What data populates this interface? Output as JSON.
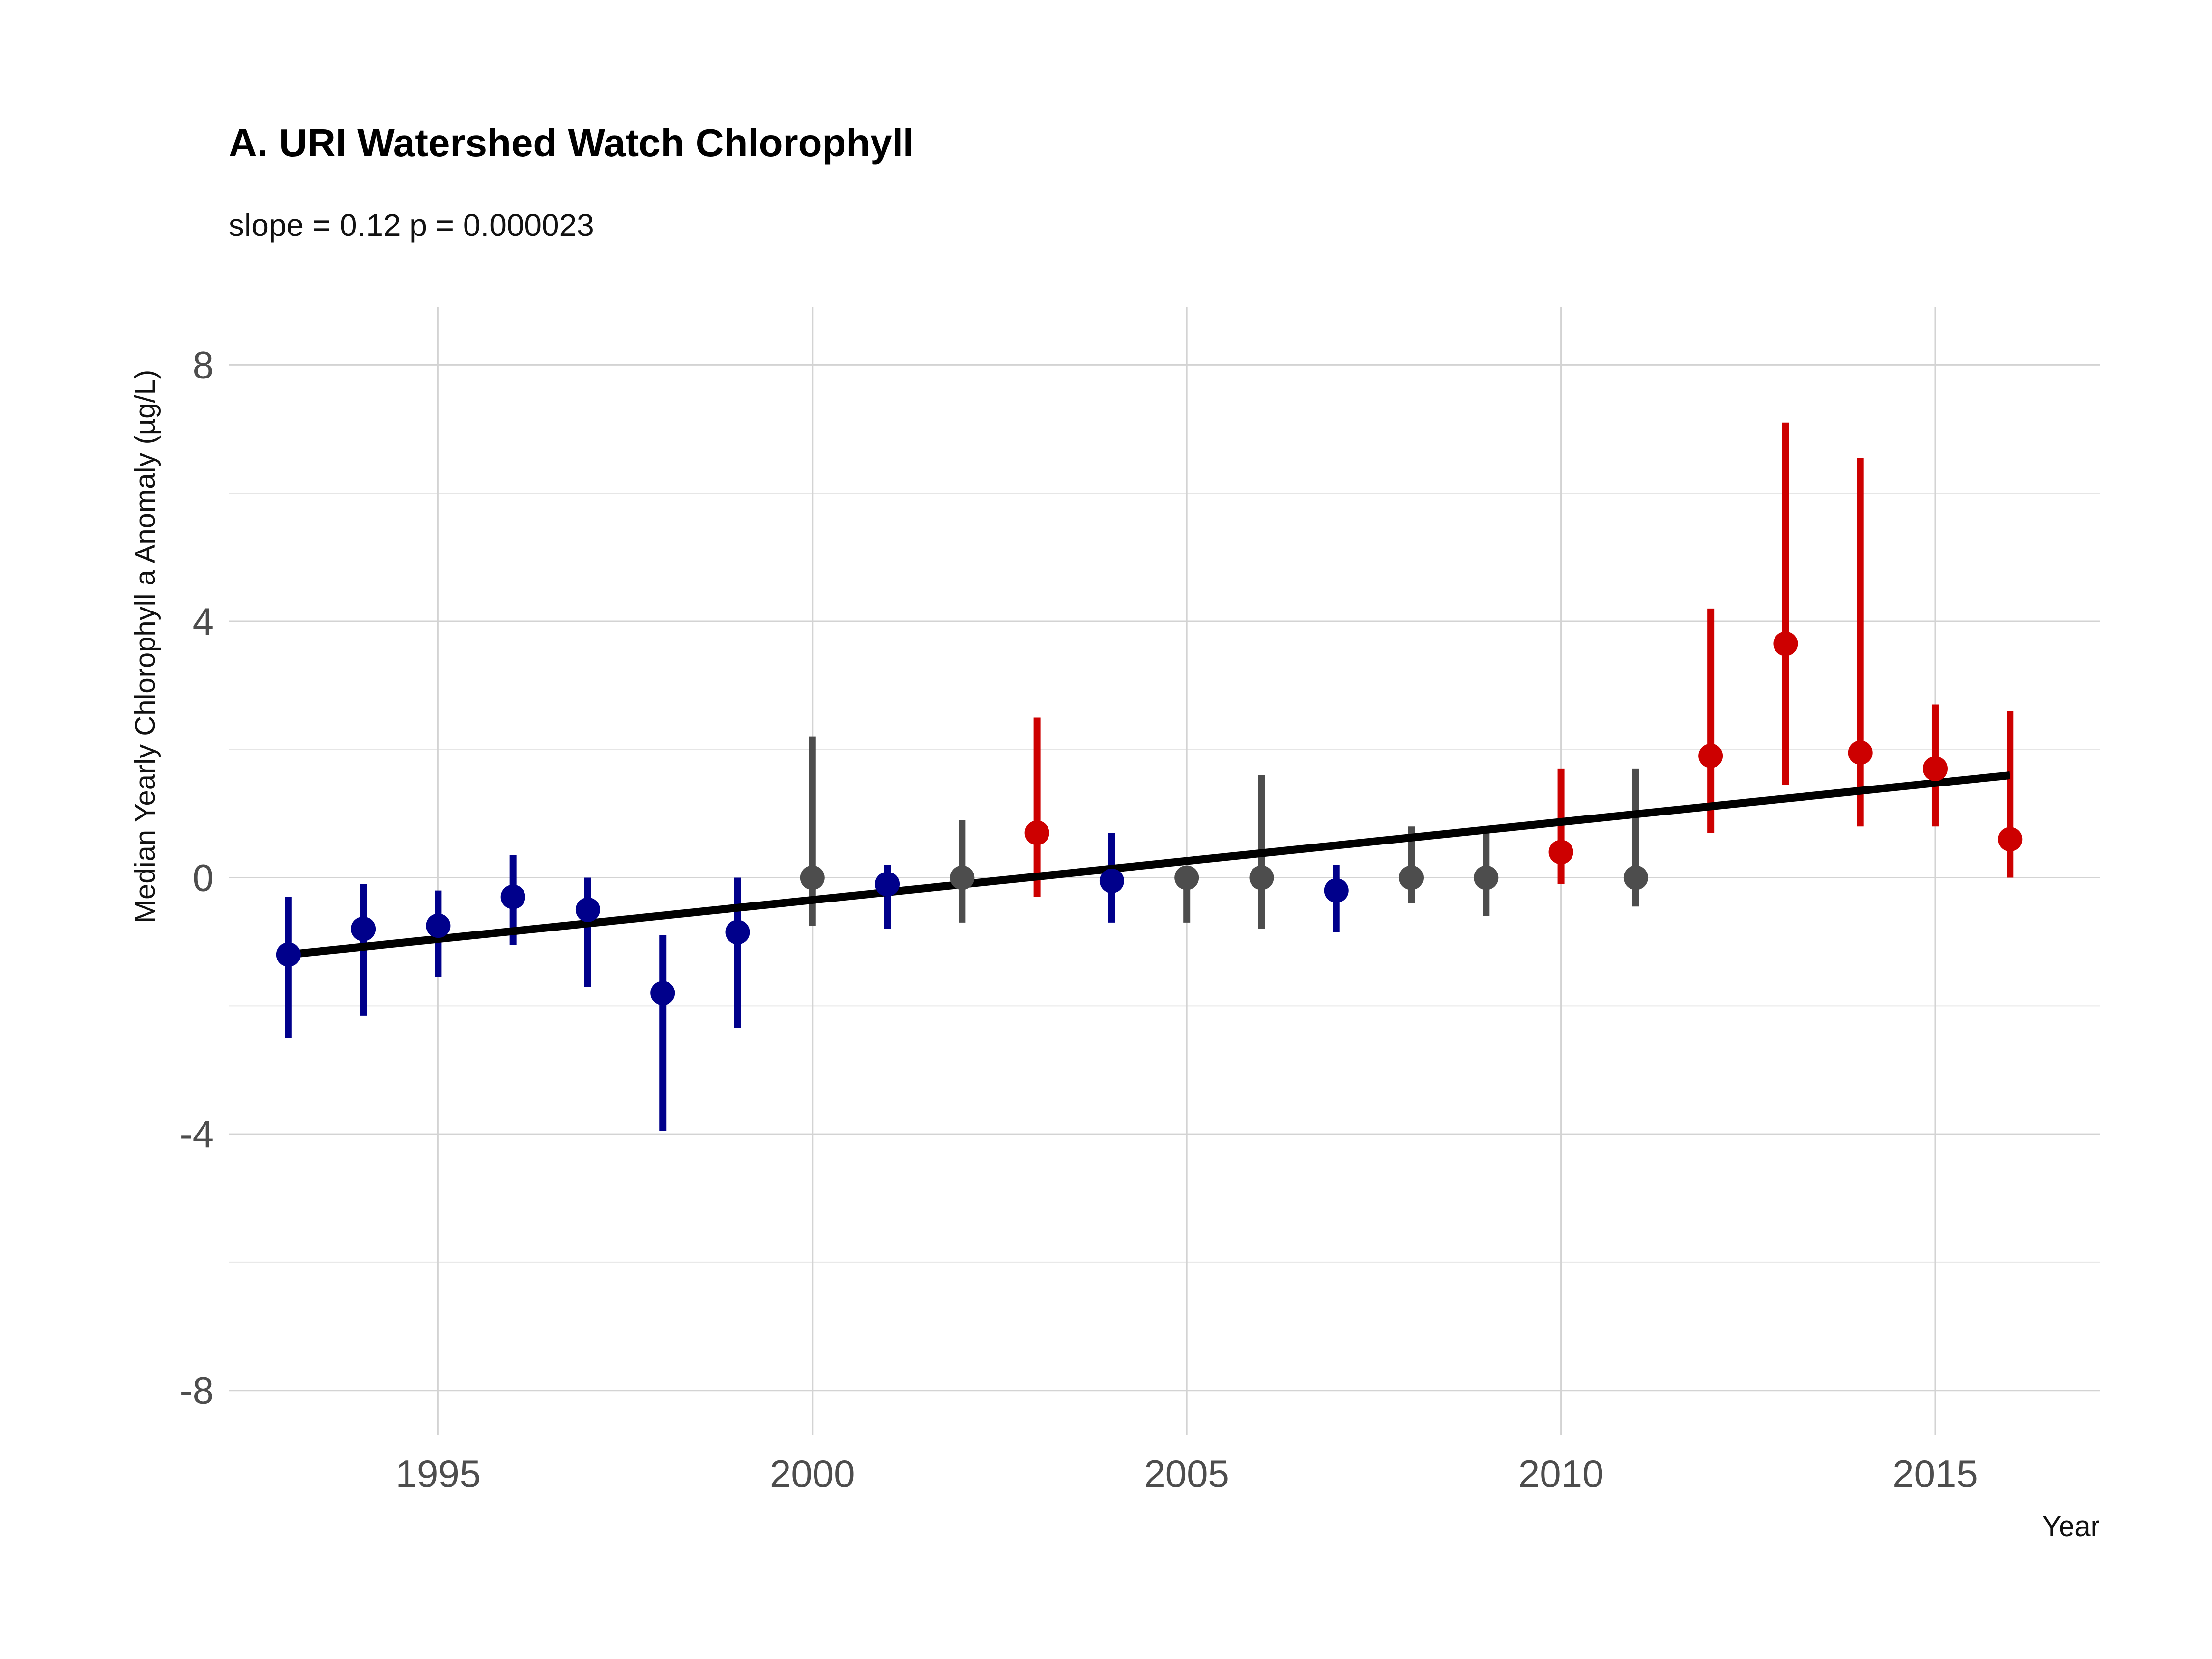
{
  "chart_data": {
    "type": "scatter",
    "title": "A. URI Watershed Watch Chlorophyll",
    "subtitle": "slope = 0.12 p = 0.000023",
    "xlabel": "Year",
    "ylabel": "Median Yearly Chlorophyll  a Anomaly (µg/L)",
    "xlim": [
      1992.2,
      2017.2
    ],
    "ylim": [
      -8.7,
      8.9
    ],
    "x_ticks": [
      1995,
      2000,
      2005,
      2010,
      2015
    ],
    "x_tick_labels": [
      "1995",
      "2000",
      "2005",
      "2010",
      "2015"
    ],
    "y_ticks": [
      -8,
      -4,
      0,
      4,
      8
    ],
    "y_tick_labels": [
      "-8",
      "-4",
      "0",
      "4",
      "8"
    ],
    "y_minor_ticks": [
      -6,
      -2,
      2,
      6
    ],
    "grid": true,
    "legend": "none",
    "colors": {
      "below": "#00008B",
      "neutral": "#4D4D4D",
      "above": "#CD0000",
      "trend": "#000000"
    },
    "points": [
      {
        "x": 1993,
        "y": -1.2,
        "low": -2.5,
        "high": -0.3,
        "group": "below"
      },
      {
        "x": 1994,
        "y": -0.8,
        "low": -2.15,
        "high": -0.1,
        "group": "below"
      },
      {
        "x": 1995,
        "y": -0.75,
        "low": -1.55,
        "high": -0.2,
        "group": "below"
      },
      {
        "x": 1996,
        "y": -0.3,
        "low": -1.05,
        "high": 0.35,
        "group": "below"
      },
      {
        "x": 1997,
        "y": -0.5,
        "low": -1.7,
        "high": 0.0,
        "group": "below"
      },
      {
        "x": 1998,
        "y": -1.8,
        "low": -3.95,
        "high": -0.9,
        "group": "below"
      },
      {
        "x": 1999,
        "y": -0.85,
        "low": -2.35,
        "high": 0.0,
        "group": "below"
      },
      {
        "x": 2000,
        "y": 0.0,
        "low": -0.75,
        "high": 2.2,
        "group": "neutral"
      },
      {
        "x": 2001,
        "y": -0.1,
        "low": -0.8,
        "high": 0.2,
        "group": "below"
      },
      {
        "x": 2002,
        "y": 0.0,
        "low": -0.7,
        "high": 0.9,
        "group": "neutral"
      },
      {
        "x": 2003,
        "y": 0.7,
        "low": -0.3,
        "high": 2.5,
        "group": "above"
      },
      {
        "x": 2004,
        "y": -0.05,
        "low": -0.7,
        "high": 0.7,
        "group": "below"
      },
      {
        "x": 2005,
        "y": 0.0,
        "low": -0.7,
        "high": 0.0,
        "group": "neutral"
      },
      {
        "x": 2006,
        "y": 0.0,
        "low": -0.8,
        "high": 1.6,
        "group": "neutral"
      },
      {
        "x": 2007,
        "y": -0.2,
        "low": -0.85,
        "high": 0.2,
        "group": "below"
      },
      {
        "x": 2008,
        "y": 0.0,
        "low": -0.4,
        "high": 0.8,
        "group": "neutral"
      },
      {
        "x": 2009,
        "y": 0.0,
        "low": -0.6,
        "high": 0.75,
        "group": "neutral"
      },
      {
        "x": 2010,
        "y": 0.4,
        "low": -0.1,
        "high": 1.7,
        "group": "above"
      },
      {
        "x": 2011,
        "y": 0.0,
        "low": -0.45,
        "high": 1.7,
        "group": "neutral"
      },
      {
        "x": 2012,
        "y": 1.9,
        "low": 0.7,
        "high": 4.2,
        "group": "above"
      },
      {
        "x": 2013,
        "y": 3.65,
        "low": 1.45,
        "high": 7.1,
        "group": "above"
      },
      {
        "x": 2014,
        "y": 1.95,
        "low": 0.8,
        "high": 6.55,
        "group": "above"
      },
      {
        "x": 2015,
        "y": 1.7,
        "low": 0.8,
        "high": 2.7,
        "group": "above"
      },
      {
        "x": 2016,
        "y": 0.6,
        "low": 0.0,
        "high": 2.6,
        "group": "above"
      }
    ],
    "trend_line": {
      "x": [
        1993,
        2016
      ],
      "y": [
        -1.2,
        1.6
      ]
    }
  }
}
